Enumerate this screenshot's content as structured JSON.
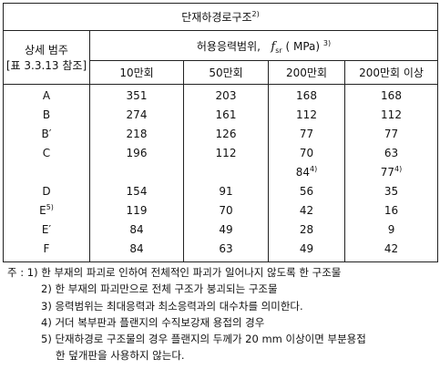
{
  "table": {
    "title": {
      "text": "단재하경로구조",
      "note": "2)"
    },
    "category_header": [
      "상세 범주",
      "[표 3.3.13 참조]"
    ],
    "range_header": {
      "text": "허용응력범위,",
      "symbol": "f",
      "subscript": "sr",
      "unit": "( MPa)",
      "note": "3)"
    },
    "columns": [
      "10만회",
      "50만회",
      "200만회",
      "200만회 이상"
    ],
    "rows": [
      {
        "label": "A",
        "values": [
          351,
          203,
          168,
          168
        ]
      },
      {
        "label": "B",
        "values": [
          274,
          161,
          112,
          112
        ]
      },
      {
        "label": "B′",
        "values": [
          218,
          126,
          77,
          77
        ]
      },
      {
        "label": "C",
        "values": [
          196,
          112,
          70,
          63
        ],
        "extra": [
          {
            "value": 84,
            "note": "4)"
          },
          {
            "value": 77,
            "note": "4)"
          }
        ]
      },
      {
        "label": "D",
        "values": [
          154,
          91,
          56,
          35
        ]
      },
      {
        "label": "E",
        "note": "5)",
        "values": [
          119,
          70,
          42,
          16
        ]
      },
      {
        "label": "E′",
        "values": [
          84,
          49,
          28,
          9
        ]
      },
      {
        "label": "F",
        "values": [
          84,
          63,
          49,
          42
        ]
      }
    ]
  },
  "notes": {
    "prefix": "주 :",
    "items": [
      "1) 한 부재의 파괴로 인하여 전체적인 파괴가 일어나지 않도록 한 구조물",
      "2) 한 부재의 파괴만으로 전체 구조가 붕괴되는 구조물",
      "3) 응력범위는 최대응력과 최소응력과의 대수차를 의미한다.",
      "4) 거더 복부판과 플랜지의 수직보강재 용접의 경우",
      "5) 단재하경로 구조물의 경우 플랜지의 두께가 20 mm 이상이면 부분용접",
      "한 덮개판을 사용하지 않는다."
    ]
  }
}
